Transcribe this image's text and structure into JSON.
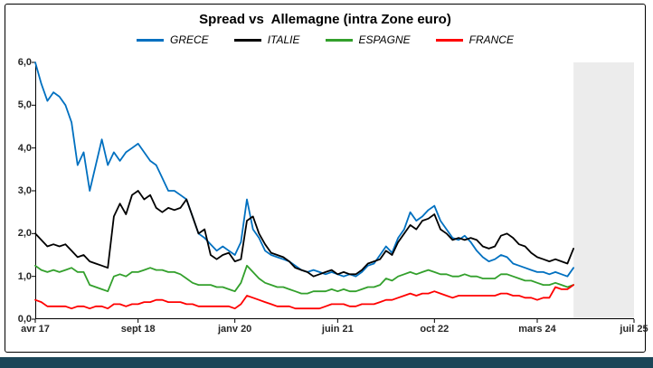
{
  "title": "Spread vs  Allemagne (intra Zone euro)",
  "legend": [
    {
      "label": "GRECE",
      "color": "#0070C0"
    },
    {
      "label": "ITALIE",
      "color": "#000000"
    },
    {
      "label": "ESPAGNE",
      "color": "#33A02C"
    },
    {
      "label": "FRANCE",
      "color": "#FF0000"
    }
  ],
  "y_axis": {
    "tick_labels_top_down": [
      "6,0",
      "5,0",
      "4,0",
      "3,0",
      "2,0",
      "1,0",
      "0,0"
    ],
    "tick_values": [
      6,
      5,
      4,
      3,
      2,
      1,
      0
    ]
  },
  "x_axis": {
    "ticks": [
      {
        "label": "avr 17",
        "month": 0
      },
      {
        "label": "sept 18",
        "month": 17
      },
      {
        "label": "janv 20",
        "month": 33
      },
      {
        "label": "juin 21",
        "month": 50
      },
      {
        "label": "oct 22",
        "month": 66
      },
      {
        "label": "mars 24",
        "month": 83
      },
      {
        "label": "juil 25",
        "month": 99
      }
    ]
  },
  "chart_data": {
    "type": "line",
    "title": "Spread vs Allemagne (intra Zone euro)",
    "x_start": "avr 2017",
    "x_frequency": "monthly",
    "x_range": [
      0,
      99
    ],
    "ylim": [
      0,
      6
    ],
    "grid": false,
    "legend_position": "top",
    "shaded_region": {
      "start_month": 89,
      "color": "#ECECEC"
    },
    "series": [
      {
        "name": "GRECE",
        "color": "#0070C0",
        "values": [
          6.0,
          5.5,
          5.1,
          5.3,
          5.2,
          5.0,
          4.6,
          3.6,
          3.9,
          3.0,
          3.6,
          4.2,
          3.6,
          3.9,
          3.7,
          3.9,
          4.0,
          4.1,
          3.9,
          3.7,
          3.6,
          3.3,
          3.0,
          3.0,
          2.9,
          2.8,
          2.4,
          2.0,
          1.9,
          1.75,
          1.6,
          1.7,
          1.6,
          1.5,
          1.8,
          2.8,
          2.1,
          1.9,
          1.6,
          1.5,
          1.45,
          1.4,
          1.35,
          1.25,
          1.15,
          1.1,
          1.15,
          1.1,
          1.05,
          1.1,
          1.05,
          1.0,
          1.05,
          1.0,
          1.1,
          1.25,
          1.3,
          1.5,
          1.7,
          1.55,
          1.9,
          2.1,
          2.5,
          2.3,
          2.4,
          2.55,
          2.65,
          2.3,
          2.1,
          1.9,
          1.85,
          1.95,
          1.8,
          1.6,
          1.45,
          1.35,
          1.4,
          1.5,
          1.45,
          1.3,
          1.25,
          1.2,
          1.15,
          1.1,
          1.1,
          1.05,
          1.1,
          1.05,
          1.0,
          1.2
        ]
      },
      {
        "name": "ITALIE",
        "color": "#000000",
        "values": [
          2.0,
          1.85,
          1.7,
          1.75,
          1.7,
          1.75,
          1.6,
          1.45,
          1.5,
          1.35,
          1.3,
          1.25,
          1.2,
          2.4,
          2.7,
          2.45,
          2.9,
          3.0,
          2.8,
          2.9,
          2.6,
          2.5,
          2.6,
          2.55,
          2.6,
          2.8,
          2.4,
          2.0,
          2.1,
          1.5,
          1.4,
          1.5,
          1.55,
          1.35,
          1.4,
          2.3,
          2.4,
          2.0,
          1.75,
          1.55,
          1.5,
          1.45,
          1.35,
          1.2,
          1.15,
          1.1,
          1.0,
          1.05,
          1.1,
          1.15,
          1.05,
          1.1,
          1.05,
          1.05,
          1.15,
          1.3,
          1.35,
          1.4,
          1.6,
          1.5,
          1.8,
          2.0,
          2.2,
          2.1,
          2.3,
          2.35,
          2.45,
          2.1,
          2.0,
          1.85,
          1.9,
          1.85,
          1.9,
          1.85,
          1.7,
          1.65,
          1.7,
          1.95,
          2.0,
          1.9,
          1.75,
          1.7,
          1.55,
          1.45,
          1.4,
          1.35,
          1.4,
          1.35,
          1.3,
          1.65
        ]
      },
      {
        "name": "ESPAGNE",
        "color": "#33A02C",
        "values": [
          1.25,
          1.15,
          1.1,
          1.15,
          1.1,
          1.15,
          1.2,
          1.1,
          1.1,
          0.8,
          0.75,
          0.7,
          0.65,
          1.0,
          1.05,
          1.0,
          1.1,
          1.1,
          1.15,
          1.2,
          1.15,
          1.15,
          1.1,
          1.1,
          1.05,
          0.95,
          0.85,
          0.8,
          0.8,
          0.8,
          0.75,
          0.75,
          0.7,
          0.65,
          0.85,
          1.25,
          1.1,
          0.95,
          0.85,
          0.8,
          0.75,
          0.75,
          0.7,
          0.65,
          0.6,
          0.6,
          0.65,
          0.65,
          0.65,
          0.7,
          0.65,
          0.7,
          0.65,
          0.65,
          0.7,
          0.75,
          0.75,
          0.8,
          0.95,
          0.9,
          1.0,
          1.05,
          1.1,
          1.05,
          1.1,
          1.15,
          1.1,
          1.05,
          1.05,
          1.0,
          1.0,
          1.05,
          1.0,
          1.0,
          0.95,
          0.95,
          0.95,
          1.05,
          1.05,
          1.0,
          0.95,
          0.9,
          0.9,
          0.85,
          0.8,
          0.8,
          0.85,
          0.8,
          0.75,
          0.8
        ]
      },
      {
        "name": "FRANCE",
        "color": "#FF0000",
        "values": [
          0.45,
          0.4,
          0.3,
          0.3,
          0.3,
          0.3,
          0.25,
          0.3,
          0.3,
          0.25,
          0.3,
          0.3,
          0.25,
          0.35,
          0.35,
          0.3,
          0.35,
          0.35,
          0.4,
          0.4,
          0.45,
          0.45,
          0.4,
          0.4,
          0.4,
          0.35,
          0.35,
          0.3,
          0.3,
          0.3,
          0.3,
          0.3,
          0.3,
          0.25,
          0.35,
          0.55,
          0.5,
          0.45,
          0.4,
          0.35,
          0.3,
          0.3,
          0.3,
          0.25,
          0.25,
          0.25,
          0.25,
          0.25,
          0.3,
          0.35,
          0.35,
          0.35,
          0.3,
          0.3,
          0.35,
          0.35,
          0.35,
          0.4,
          0.45,
          0.45,
          0.5,
          0.55,
          0.6,
          0.55,
          0.6,
          0.6,
          0.65,
          0.6,
          0.55,
          0.5,
          0.55,
          0.55,
          0.55,
          0.55,
          0.55,
          0.55,
          0.55,
          0.6,
          0.6,
          0.55,
          0.55,
          0.5,
          0.5,
          0.45,
          0.5,
          0.5,
          0.75,
          0.7,
          0.7,
          0.8
        ]
      }
    ]
  },
  "footer": {
    "bar_color": "#1B4658"
  }
}
